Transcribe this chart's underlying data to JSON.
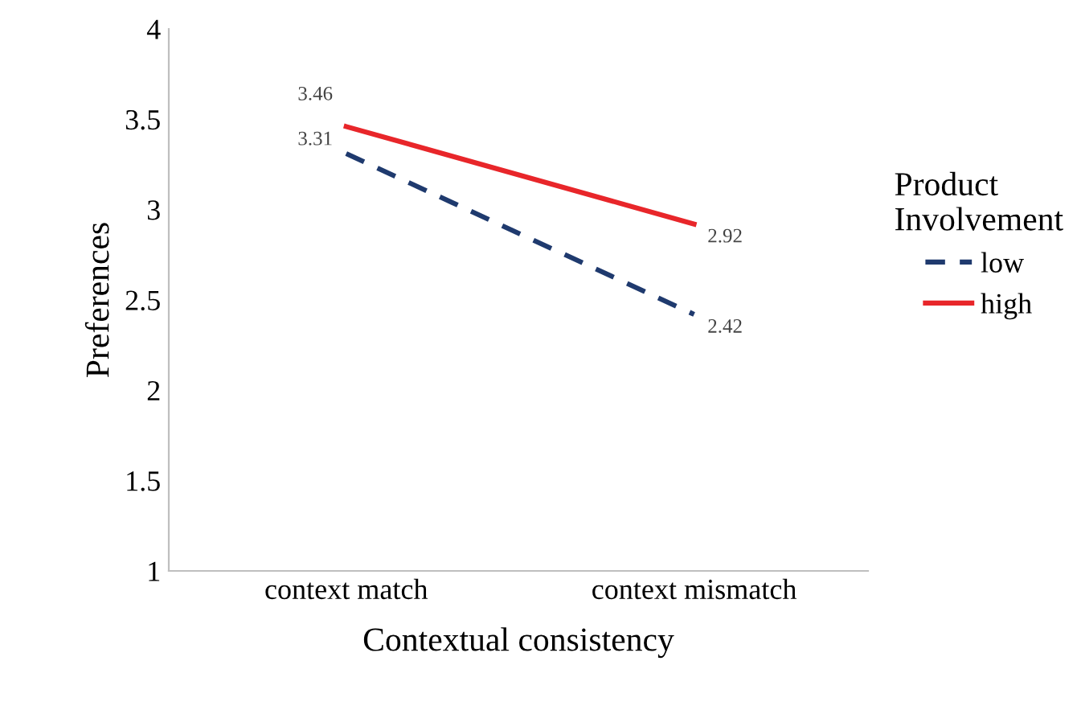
{
  "chart_data": {
    "type": "line",
    "xlabel": "Contextual consistency",
    "ylabel": "Preferences",
    "legend_title": "Product\nInvolvement",
    "categories": [
      "context match",
      "context mismatch"
    ],
    "series": [
      {
        "name": "low",
        "color": "#1f3a6e",
        "values": [
          3.31,
          2.42
        ],
        "line_style": "dashed"
      },
      {
        "name": "high",
        "color": "#e8262a",
        "values": [
          3.46,
          2.92
        ],
        "line_style": "solid"
      }
    ],
    "ylim": [
      1,
      4
    ],
    "yticks": [
      1,
      1.5,
      2,
      2.5,
      3,
      3.5,
      4
    ],
    "grid": false,
    "legend": "right",
    "marker": "none",
    "data_labels": true
  }
}
